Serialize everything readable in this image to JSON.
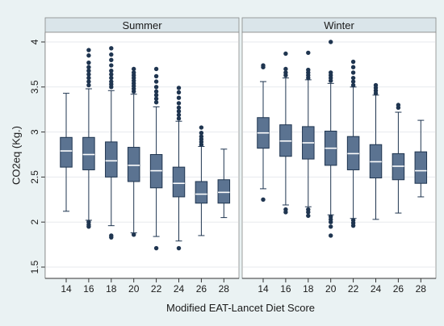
{
  "chart_data": {
    "type": "boxplot",
    "xlabel": "Modified EAT-Lancet Diet Score",
    "ylabel": "CO2eq (Kg.)",
    "ylim": [
      1.5,
      4
    ],
    "yticks": [
      "1.5",
      "2",
      "2.5",
      "3",
      "3.5",
      "4"
    ],
    "categories": [
      "14",
      "16",
      "18",
      "20",
      "22",
      "24",
      "26",
      "28"
    ],
    "grid": true,
    "colors": {
      "box": "#5b7391",
      "box_stroke": "#1f3550",
      "outlier": "#1f3550",
      "median": "#ffffff",
      "panel": "#ffffff",
      "strip": "#dae5ea",
      "background": "#eaf2f3",
      "grid": "#e7eaee"
    },
    "panels": [
      {
        "title": "Summer",
        "boxes": [
          {
            "x": "14",
            "whisker_low": 2.12,
            "q1": 2.61,
            "median": 2.79,
            "q3": 2.94,
            "whisker_high": 3.43,
            "outliers": []
          },
          {
            "x": "16",
            "whisker_low": 2.02,
            "q1": 2.58,
            "median": 2.75,
            "q3": 2.94,
            "whisker_high": 3.48,
            "outliers": [
              3.52,
              3.56,
              3.6,
              3.64,
              3.68,
              3.72,
              3.77,
              3.85,
              3.91,
              2.0,
              1.97,
              1.95
            ]
          },
          {
            "x": "18",
            "whisker_low": 1.96,
            "q1": 2.5,
            "median": 2.68,
            "q3": 2.89,
            "whisker_high": 3.46,
            "outliers": [
              3.5,
              3.53,
              3.56,
              3.6,
              3.64,
              3.68,
              3.74,
              3.8,
              3.86,
              3.93,
              1.85,
              1.83
            ]
          },
          {
            "x": "20",
            "whisker_low": 1.88,
            "q1": 2.45,
            "median": 2.63,
            "q3": 2.83,
            "whisker_high": 3.42,
            "outliers": [
              3.45,
              3.48,
              3.51,
              3.54,
              3.57,
              3.6,
              3.63,
              3.66,
              3.7,
              1.86
            ]
          },
          {
            "x": "22",
            "whisker_low": 1.84,
            "q1": 2.38,
            "median": 2.57,
            "q3": 2.75,
            "whisker_high": 3.28,
            "outliers": [
              3.33,
              3.37,
              3.41,
              3.45,
              3.5,
              3.56,
              3.62,
              3.7,
              1.71
            ]
          },
          {
            "x": "24",
            "whisker_low": 1.79,
            "q1": 2.28,
            "median": 2.43,
            "q3": 2.61,
            "whisker_high": 3.12,
            "outliers": [
              3.15,
              3.19,
              3.23,
              3.27,
              3.32,
              3.38,
              3.44,
              3.49,
              1.71
            ]
          },
          {
            "x": "26",
            "whisker_low": 1.85,
            "q1": 2.21,
            "median": 2.31,
            "q3": 2.45,
            "whisker_high": 2.84,
            "outliers": [
              2.86,
              2.89,
              2.92,
              2.95,
              2.99,
              3.05
            ]
          },
          {
            "x": "28",
            "whisker_low": 2.05,
            "q1": 2.21,
            "median": 2.33,
            "q3": 2.47,
            "whisker_high": 2.81,
            "outliers": []
          }
        ]
      },
      {
        "title": "Winter",
        "boxes": [
          {
            "x": "14",
            "whisker_low": 2.37,
            "q1": 2.82,
            "median": 2.99,
            "q3": 3.16,
            "whisker_high": 3.56,
            "outliers": [
              3.72,
              3.74,
              2.25
            ]
          },
          {
            "x": "16",
            "whisker_low": 2.19,
            "q1": 2.73,
            "median": 2.9,
            "q3": 3.08,
            "whisker_high": 3.6,
            "outliers": [
              3.63,
              3.66,
              3.7,
              3.87,
              2.14,
              2.11
            ]
          },
          {
            "x": "18",
            "whisker_low": 2.17,
            "q1": 2.7,
            "median": 2.88,
            "q3": 3.06,
            "whisker_high": 3.58,
            "outliers": [
              3.6,
              3.63,
              3.66,
              3.69,
              3.88,
              2.14,
              2.11,
              2.07
            ]
          },
          {
            "x": "20",
            "whisker_low": 2.08,
            "q1": 2.63,
            "median": 2.82,
            "q3": 3.01,
            "whisker_high": 3.54,
            "outliers": [
              3.57,
              3.6,
              3.63,
              3.66,
              4.0,
              2.06,
              2.03,
              2.0,
              1.95,
              1.85
            ]
          },
          {
            "x": "22",
            "whisker_low": 2.04,
            "q1": 2.58,
            "median": 2.76,
            "q3": 2.95,
            "whisker_high": 3.5,
            "outliers": [
              3.52,
              3.56,
              3.6,
              3.66,
              3.72,
              3.78,
              2.02,
              1.99,
              1.96
            ]
          },
          {
            "x": "24",
            "whisker_low": 2.03,
            "q1": 2.49,
            "median": 2.67,
            "q3": 2.86,
            "whisker_high": 3.41,
            "outliers": [
              3.43,
              3.46,
              3.49,
              3.52
            ]
          },
          {
            "x": "26",
            "whisker_low": 2.1,
            "q1": 2.47,
            "median": 2.62,
            "q3": 2.76,
            "whisker_high": 3.22,
            "outliers": [
              3.27,
              3.3
            ]
          },
          {
            "x": "28",
            "whisker_low": 2.28,
            "q1": 2.43,
            "median": 2.57,
            "q3": 2.78,
            "whisker_high": 3.13,
            "outliers": []
          }
        ]
      }
    ]
  }
}
